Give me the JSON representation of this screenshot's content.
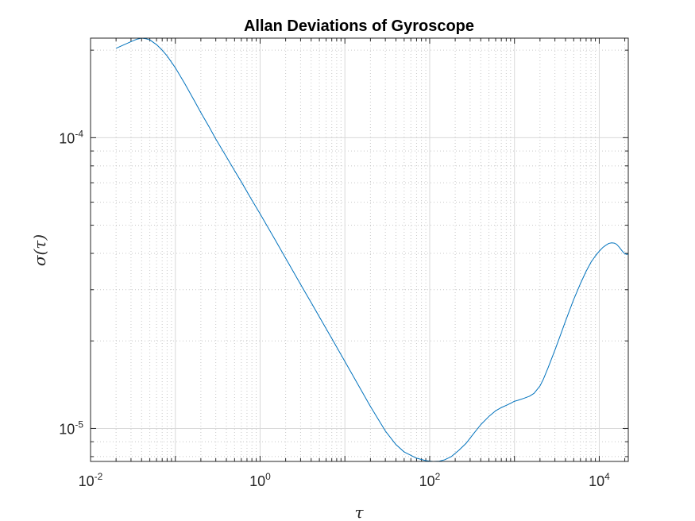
{
  "chart_data": {
    "type": "line",
    "title": "Allan Deviations of Gyroscope",
    "xlabel": "τ",
    "ylabel": "σ(τ)",
    "xscale": "log",
    "yscale": "log",
    "xlim": [
      0.01,
      22000
    ],
    "ylim": [
      7.7e-06,
      0.00022
    ],
    "grid": true,
    "minor_grid": true,
    "x_ticks": [
      {
        "base": "10",
        "exp": "-2",
        "value": 0.01
      },
      {
        "base": "10",
        "exp": "0",
        "value": 1
      },
      {
        "base": "10",
        "exp": "2",
        "value": 100
      },
      {
        "base": "10",
        "exp": "4",
        "value": 10000
      }
    ],
    "y_ticks": [
      {
        "base": "10",
        "exp": "-5",
        "value": 1e-05
      },
      {
        "base": "10",
        "exp": "-4",
        "value": 0.0001
      }
    ],
    "series": [
      {
        "color": "#0072BD",
        "x": [
          0.02,
          0.025,
          0.03,
          0.035,
          0.04,
          0.045,
          0.05,
          0.06,
          0.07,
          0.08,
          0.1,
          0.13,
          0.17,
          0.2,
          0.25,
          0.3,
          0.4,
          0.5,
          0.6,
          0.8,
          1,
          1.5,
          2,
          3,
          4,
          5,
          7,
          10,
          15,
          20,
          30,
          40,
          50,
          70,
          90,
          110,
          130,
          150,
          180,
          220,
          270,
          330,
          400,
          500,
          600,
          700,
          800,
          900,
          1000,
          1100,
          1300,
          1500,
          1700,
          2000,
          2200,
          2500,
          3000,
          3500,
          4000,
          5000,
          6000,
          7000,
          8000,
          9000,
          10000,
          11000,
          12000,
          13000,
          14000,
          15000,
          16000,
          17000,
          18000,
          19000,
          20000,
          21000,
          22000
        ],
        "y": [
          0.000203,
          0.000209,
          0.000214,
          0.000218,
          0.00022,
          0.000219,
          0.000217,
          0.000209,
          0.0002,
          0.000191,
          0.000174,
          0.000153,
          0.000133,
          0.000122,
          0.000109,
          9.9e-05,
          8.6e-05,
          7.7e-05,
          7.05e-05,
          6.1e-05,
          5.47e-05,
          4.46e-05,
          3.85e-05,
          3.13e-05,
          2.71e-05,
          2.42e-05,
          2.04e-05,
          1.7e-05,
          1.38e-05,
          1.19e-05,
          9.8e-06,
          8.8e-06,
          8.3e-06,
          7.9e-06,
          7.75e-06,
          7.7e-06,
          7.72e-06,
          7.8e-06,
          8e-06,
          8.4e-06,
          8.9e-06,
          9.6e-06,
          1.03e-05,
          1.1e-05,
          1.15e-05,
          1.18e-05,
          1.2e-05,
          1.22e-05,
          1.24e-05,
          1.25e-05,
          1.27e-05,
          1.29e-05,
          1.32e-05,
          1.4e-05,
          1.48e-05,
          1.62e-05,
          1.86e-05,
          2.1e-05,
          2.34e-05,
          2.78e-05,
          3.15e-05,
          3.47e-05,
          3.73e-05,
          3.92e-05,
          4.07e-05,
          4.19e-05,
          4.27e-05,
          4.33e-05,
          4.35e-05,
          4.34e-05,
          4.3e-05,
          4.22e-05,
          4.13e-05,
          4.05e-05,
          3.99e-05,
          3.97e-05,
          3.98e-05
        ]
      }
    ]
  }
}
